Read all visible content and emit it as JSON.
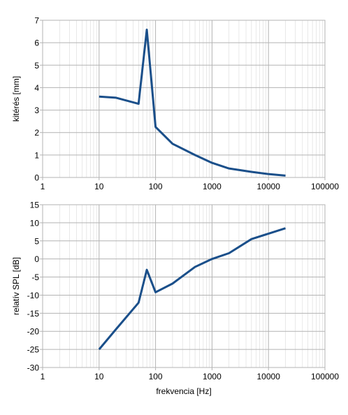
{
  "chart_data": [
    {
      "type": "line",
      "ylabel": "kitérés [mm]",
      "xlabel": "",
      "xscale": "log",
      "xlim": [
        1,
        100000
      ],
      "ylim": [
        0,
        7
      ],
      "x_tick_labels": [
        "1",
        "10",
        "100",
        "1000",
        "10000",
        "100000"
      ],
      "y_tick_labels": [
        "0",
        "1",
        "2",
        "3",
        "4",
        "5",
        "6",
        "7"
      ],
      "grid": true,
      "series_color": "#1a4f8a",
      "series": [
        {
          "x": [
            10,
            20,
            50,
            70,
            100,
            200,
            500,
            1000,
            2000,
            5000,
            10000,
            20000
          ],
          "y": [
            3.6,
            3.55,
            3.28,
            6.58,
            2.25,
            1.5,
            1.0,
            0.65,
            0.4,
            0.25,
            0.15,
            0.08
          ]
        }
      ]
    },
    {
      "type": "line",
      "ylabel": "relatív SPL [dB]",
      "xlabel": "frekvencia [Hz]",
      "xscale": "log",
      "xlim": [
        1,
        100000
      ],
      "ylim": [
        -30,
        15
      ],
      "x_tick_labels": [
        "1",
        "10",
        "100",
        "1000",
        "10000",
        "100000"
      ],
      "y_tick_labels": [
        "-30",
        "-25",
        "-20",
        "-15",
        "-10",
        "-5",
        "0",
        "5",
        "10",
        "15"
      ],
      "grid": true,
      "series_color": "#1a4f8a",
      "series": [
        {
          "x": [
            10,
            20,
            50,
            70,
            100,
            200,
            500,
            1000,
            2000,
            5000,
            10000,
            20000
          ],
          "y": [
            -25.0,
            -19.4,
            -12.1,
            -3.0,
            -9.2,
            -6.8,
            -2.2,
            0.0,
            1.6,
            5.5,
            7.0,
            8.5
          ]
        }
      ]
    }
  ]
}
